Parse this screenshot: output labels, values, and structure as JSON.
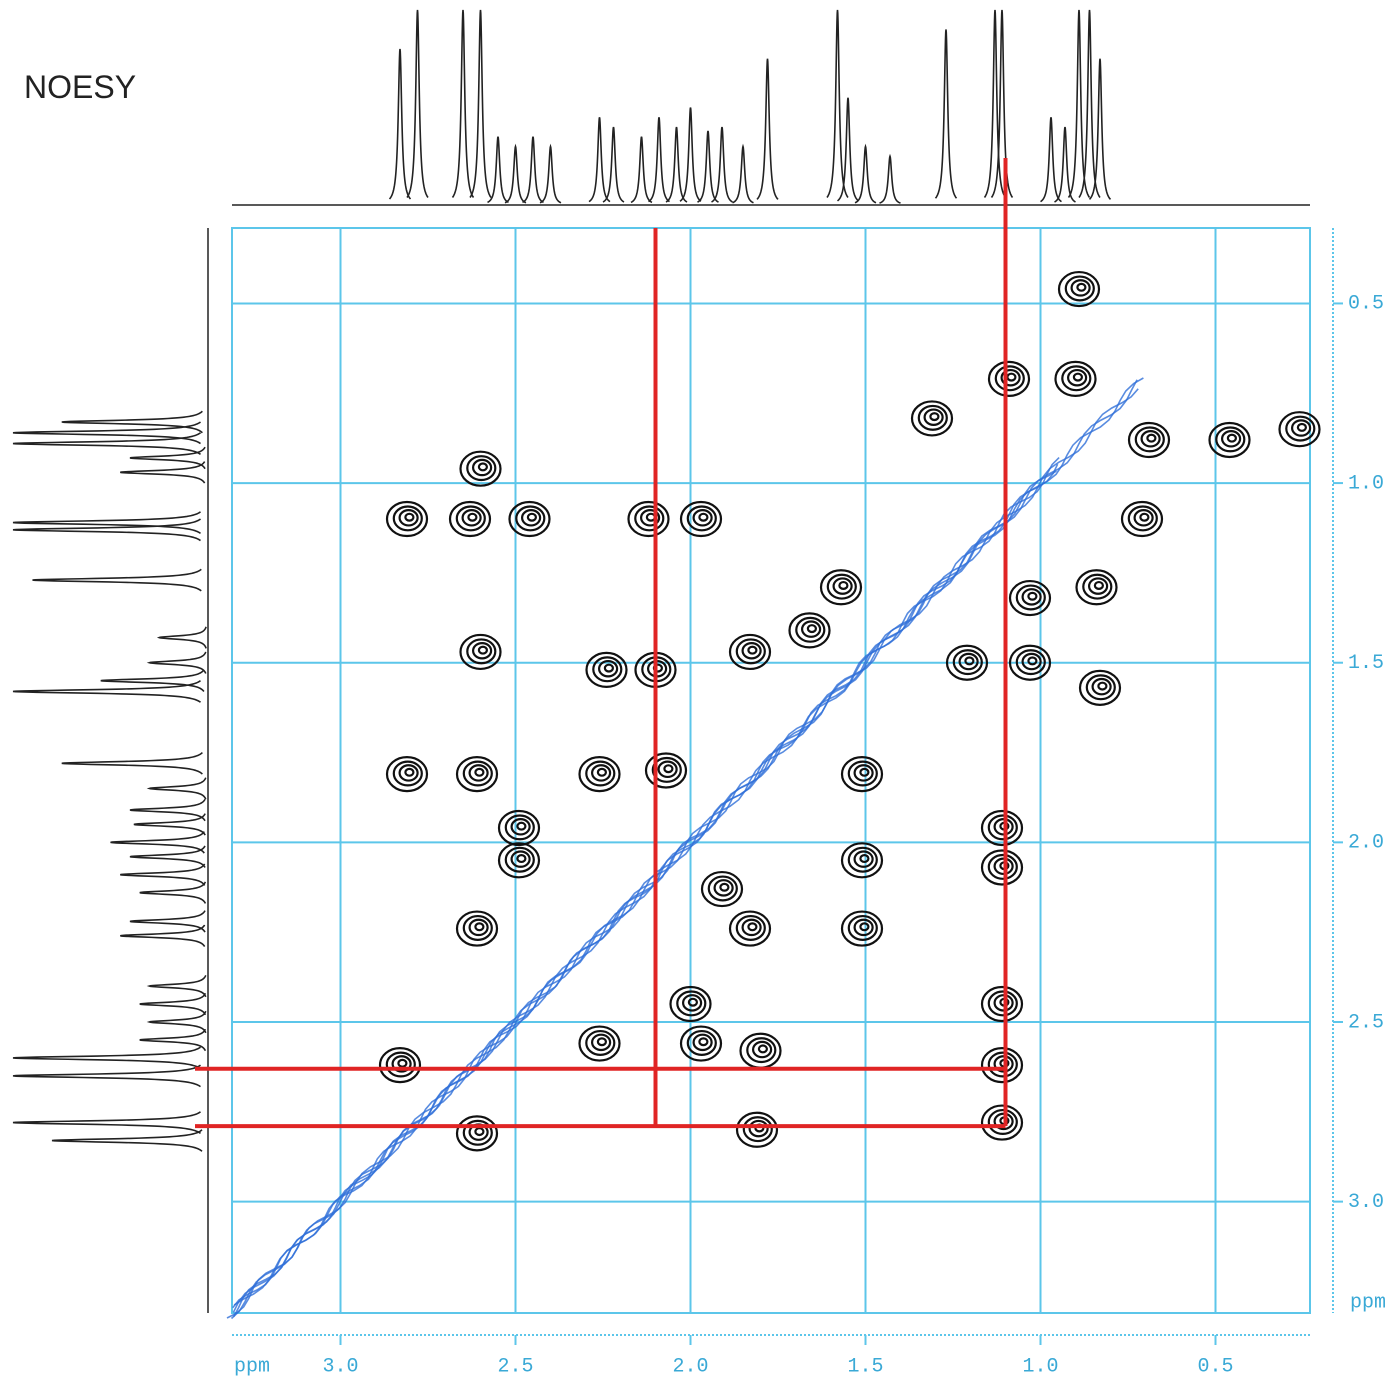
{
  "chart_data": {
    "type": "noesy",
    "title": "NOESY",
    "xlabel": "ppm",
    "ylabel": "ppm",
    "xlim": [
      3.31,
      0.23
    ],
    "ylim": [
      0.29,
      3.31
    ],
    "xticks": [
      {
        "value": 3,
        "label": "3.0"
      },
      2.5,
      {
        "value": 2,
        "label": "2.0"
      },
      1.5,
      {
        "value": 1,
        "label": "1.0"
      },
      0.5
    ],
    "yticks": [
      0.5,
      {
        "value": 1,
        "label": "1.0"
      },
      1.5,
      {
        "value": 2,
        "label": "2.0"
      },
      2.5,
      {
        "value": 3,
        "label": "3.0"
      }
    ],
    "grid": true,
    "grid_color": "#5cc6ea",
    "diagonal_color": "#2f6fd8",
    "spectrum": {
      "color": "#222",
      "x": [
        2.83,
        2.78,
        2.65,
        2.6,
        2.55,
        2.5,
        2.45,
        2.4,
        2.26,
        2.22,
        2.14,
        2.09,
        2.04,
        2.0,
        1.95,
        1.91,
        1.85,
        1.78,
        1.58,
        1.55,
        1.5,
        1.43,
        1.27,
        1.13,
        1.11,
        0.97,
        0.93,
        0.89,
        0.86,
        0.83
      ],
      "intensity": [
        80,
        100,
        100,
        100,
        35,
        30,
        35,
        30,
        45,
        40,
        35,
        45,
        40,
        50,
        38,
        40,
        30,
        75,
        100,
        55,
        30,
        25,
        90,
        100,
        100,
        45,
        40,
        100,
        100,
        75
      ]
    },
    "peaks": {
      "color": "#111",
      "x": [
        2.81,
        2.63,
        2.46,
        2.12,
        1.97,
        2.6,
        2.6,
        2.24,
        2.1,
        1.83,
        1.66,
        2.81,
        2.61,
        2.26,
        2.07,
        2.49,
        2.49,
        2.61,
        1.83,
        1.51,
        1.51,
        1.51,
        1.11,
        1.11,
        2.0,
        2.26,
        1.97,
        1.8,
        2.83,
        1.11,
        2.61,
        1.81,
        1.11,
        1.11,
        1.31,
        0.9,
        0.89,
        0.69,
        0.46,
        0.26,
        0.71,
        1.03,
        0.84,
        1.21,
        1.03,
        0.83,
        1.57,
        1.91,
        1.09
      ],
      "y": [
        1.1,
        1.1,
        1.1,
        1.1,
        1.1,
        0.96,
        1.47,
        1.52,
        1.52,
        1.47,
        1.41,
        1.81,
        1.81,
        1.81,
        1.8,
        1.96,
        2.05,
        2.24,
        2.24,
        2.24,
        1.81,
        2.05,
        1.96,
        2.07,
        2.45,
        2.56,
        2.56,
        2.58,
        2.62,
        2.62,
        2.81,
        2.8,
        2.78,
        2.45,
        0.82,
        0.71,
        0.46,
        0.88,
        0.88,
        0.85,
        1.1,
        1.32,
        1.29,
        1.5,
        1.5,
        1.57,
        1.29,
        2.13,
        0.71
      ]
    },
    "markers": {
      "color": "#e02424",
      "vlines": [
        2.1,
        1.1
      ],
      "hlines": [
        2.63,
        2.79
      ]
    }
  }
}
